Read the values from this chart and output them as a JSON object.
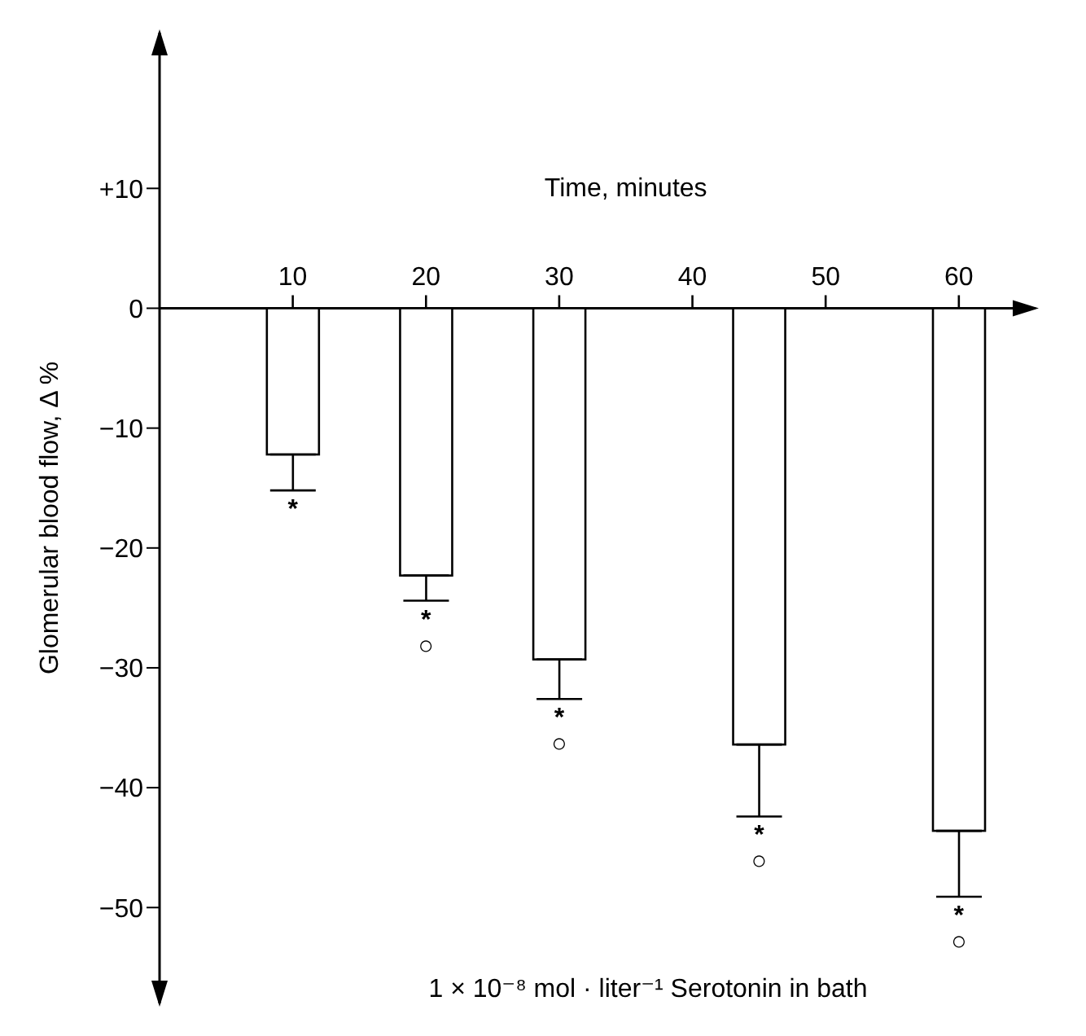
{
  "chart_data": {
    "type": "bar",
    "xlabel": "Time, minutes",
    "ylabel": "Glomerular blood flow, Δ %",
    "x": [
      10,
      20,
      30,
      45,
      60
    ],
    "values": [
      -12.2,
      -22.3,
      -29.3,
      -36.4,
      -43.6
    ],
    "errors": [
      [
        -15.2,
        -12.2
      ],
      [
        -24.4,
        -22.3
      ],
      [
        -32.6,
        -29.3
      ],
      [
        -42.4,
        -36.4
      ],
      [
        -49.1,
        -43.6
      ]
    ],
    "color": "#ffffff",
    "xlim": [
      0,
      66
    ],
    "xticks": [
      10,
      20,
      30,
      40,
      50,
      60
    ],
    "ylim": [
      -58,
      23
    ],
    "yticks": [
      {
        "value": 10,
        "label": "+10"
      },
      {
        "value": 0,
        "label": "0"
      },
      {
        "value": -10,
        "label": "−10"
      },
      {
        "value": -20,
        "label": "−20"
      },
      {
        "value": -30,
        "label": "−30"
      },
      {
        "value": -40,
        "label": "−40"
      },
      {
        "value": -50,
        "label": "−50"
      }
    ],
    "annotations": [
      {
        "text": "*",
        "x": 10,
        "y": -15.2
      },
      {
        "text": "*",
        "x": 20,
        "y": -24.4
      },
      {
        "text": "○",
        "x": 20,
        "y": -24.4
      },
      {
        "text": "*",
        "x": 30,
        "y": -32.6
      },
      {
        "text": "○",
        "x": 30,
        "y": -32.6
      },
      {
        "text": "*",
        "x": 45,
        "y": -42.4
      },
      {
        "text": "○",
        "x": 45,
        "y": -42.4
      },
      {
        "text": "*",
        "x": 60,
        "y": -49.1
      },
      {
        "text": "○",
        "x": 60,
        "y": -49.1
      },
      "1 × 10⁻⁸ mol · liter⁻¹ Serotonin in bath"
    ],
    "grid": false
  }
}
